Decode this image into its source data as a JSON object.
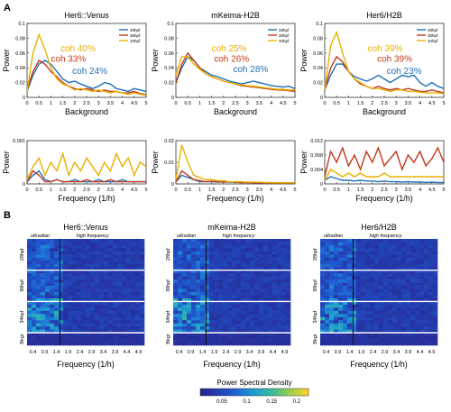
{
  "panel_labels": {
    "a": "A",
    "b": "B"
  },
  "colors": {
    "blue": "#1f6fb4",
    "red": "#c0391b",
    "yellow": "#e8b100"
  },
  "chart_data": [
    {
      "type": "line",
      "title": "Her6::Venus",
      "xlabel": "Background",
      "ylabel": "Power",
      "xticks": [
        "0",
        "0.5",
        "1",
        "1.5",
        "2",
        "2.5",
        "3",
        "3.5",
        "4",
        "4.5",
        "5"
      ],
      "xlim": [
        0,
        5
      ],
      "ylim": [
        0,
        0.1
      ],
      "yticks": [
        "0",
        "0.02",
        "0.04",
        "0.06",
        "0.08",
        "0.1"
      ],
      "legend": [
        "28hpf",
        "30hpf",
        "34hpf"
      ],
      "annotations": [
        "coh 40%",
        "coh 33%",
        "coh 24%"
      ],
      "x": [
        0,
        0.25,
        0.5,
        0.75,
        1,
        1.25,
        1.5,
        1.75,
        2,
        2.25,
        2.5,
        2.75,
        3,
        3.25,
        3.5,
        3.75,
        4,
        4.25,
        4.5,
        4.75,
        5
      ],
      "series": [
        {
          "name": "28hpf",
          "values": [
            0.008,
            0.03,
            0.045,
            0.05,
            0.045,
            0.035,
            0.025,
            0.02,
            0.022,
            0.018,
            0.015,
            0.012,
            0.015,
            0.02,
            0.018,
            0.012,
            0.01,
            0.008,
            0.012,
            0.01,
            0.008
          ]
        },
        {
          "name": "30hpf",
          "values": [
            0.01,
            0.035,
            0.05,
            0.045,
            0.035,
            0.028,
            0.02,
            0.015,
            0.012,
            0.01,
            0.012,
            0.01,
            0.008,
            0.01,
            0.008,
            0.008,
            0.006,
            0.006,
            0.008,
            0.005,
            0.004
          ]
        },
        {
          "name": "34hpf",
          "values": [
            0.008,
            0.06,
            0.085,
            0.065,
            0.04,
            0.025,
            0.018,
            0.015,
            0.01,
            0.012,
            0.01,
            0.008,
            0.01,
            0.008,
            0.006,
            0.008,
            0.006,
            0.004,
            0.006,
            0.004,
            0.003
          ]
        }
      ]
    },
    {
      "type": "line",
      "title": "mKeima-H2B",
      "xlabel": "Background",
      "ylabel": "Power",
      "xticks": [
        "0",
        "0.5",
        "1",
        "1.5",
        "2",
        "2.5",
        "3",
        "3.5",
        "4",
        "4.5",
        "5"
      ],
      "xlim": [
        0,
        5
      ],
      "ylim": [
        0,
        0.1
      ],
      "yticks": [
        "0",
        "0.02",
        "0.04",
        "0.06",
        "0.08",
        "0.1"
      ],
      "legend": [
        "28hpf",
        "30hpf",
        "34hpf"
      ],
      "annotations": [
        "coh 25%",
        "coh 26%",
        "coh 28%"
      ],
      "x": [
        0,
        0.25,
        0.5,
        0.75,
        1,
        1.25,
        1.5,
        1.75,
        2,
        2.25,
        2.5,
        2.75,
        3,
        3.25,
        3.5,
        3.75,
        4,
        4.25,
        4.5,
        4.75,
        5
      ],
      "series": [
        {
          "name": "28hpf",
          "values": [
            0.02,
            0.04,
            0.055,
            0.05,
            0.04,
            0.035,
            0.03,
            0.028,
            0.025,
            0.022,
            0.02,
            0.018,
            0.02,
            0.022,
            0.02,
            0.018,
            0.016,
            0.015,
            0.014,
            0.015,
            0.012
          ]
        },
        {
          "name": "30hpf",
          "values": [
            0.02,
            0.045,
            0.06,
            0.05,
            0.04,
            0.032,
            0.028,
            0.025,
            0.022,
            0.02,
            0.018,
            0.016,
            0.015,
            0.014,
            0.013,
            0.012,
            0.011,
            0.01,
            0.01,
            0.009,
            0.008
          ]
        },
        {
          "name": "34hpf",
          "values": [
            0.03,
            0.055,
            0.055,
            0.045,
            0.038,
            0.032,
            0.028,
            0.025,
            0.022,
            0.02,
            0.018,
            0.017,
            0.016,
            0.015,
            0.014,
            0.013,
            0.012,
            0.011,
            0.011,
            0.01,
            0.01
          ]
        }
      ]
    },
    {
      "type": "line",
      "title": "Her6/H2B",
      "xlabel": "Background",
      "ylabel": "Power",
      "xticks": [
        "0",
        "0.5",
        "1",
        "1.5",
        "2",
        "2.5",
        "3",
        "3.5",
        "4",
        "4.5",
        "5"
      ],
      "xlim": [
        0,
        5
      ],
      "ylim": [
        0,
        0.1
      ],
      "yticks": [
        "0",
        "0.02",
        "0.04",
        "0.06",
        "0.08",
        "0.1"
      ],
      "legend": [
        "28hpf",
        "30hpf",
        "34hpf"
      ],
      "annotations": [
        "coh 39%",
        "coh 39%",
        "coh 23%"
      ],
      "x": [
        0,
        0.25,
        0.5,
        0.75,
        1,
        1.25,
        1.5,
        1.75,
        2,
        2.25,
        2.5,
        2.75,
        3,
        3.25,
        3.5,
        3.75,
        4,
        4.25,
        4.5,
        4.75,
        5
      ],
      "series": [
        {
          "name": "28hpf",
          "values": [
            0.01,
            0.03,
            0.045,
            0.045,
            0.035,
            0.028,
            0.025,
            0.022,
            0.025,
            0.03,
            0.025,
            0.02,
            0.025,
            0.03,
            0.028,
            0.03,
            0.02,
            0.015,
            0.02,
            0.015,
            0.012
          ]
        },
        {
          "name": "30hpf",
          "values": [
            0.01,
            0.04,
            0.055,
            0.048,
            0.035,
            0.025,
            0.018,
            0.015,
            0.012,
            0.015,
            0.012,
            0.01,
            0.012,
            0.01,
            0.012,
            0.01,
            0.008,
            0.008,
            0.01,
            0.008,
            0.006
          ]
        },
        {
          "name": "34hpf",
          "values": [
            0.01,
            0.07,
            0.088,
            0.06,
            0.035,
            0.025,
            0.02,
            0.015,
            0.012,
            0.012,
            0.01,
            0.008,
            0.01,
            0.01,
            0.008,
            0.008,
            0.007,
            0.006,
            0.006,
            0.006,
            0.005
          ]
        }
      ]
    },
    {
      "type": "line",
      "title": "",
      "xlabel": "Frequency (1/h)",
      "ylabel": "Power",
      "xticks": [
        "0",
        "0.5",
        "1",
        "1.5",
        "2",
        "2.5",
        "3",
        "3.5",
        "4",
        "4.5",
        "5"
      ],
      "xlim": [
        0,
        5
      ],
      "ylim": [
        0,
        0.001
      ],
      "yticks": [
        "0",
        "0.001"
      ],
      "x": [
        0,
        0.25,
        0.5,
        0.75,
        1,
        1.25,
        1.5,
        1.75,
        2,
        2.25,
        2.5,
        2.75,
        3,
        3.25,
        3.5,
        3.75,
        4,
        4.25,
        4.5,
        4.75,
        5
      ],
      "series": [
        {
          "name": "28hpf",
          "values": [
            5e-05,
            0.0002,
            0.0003,
            0.0001,
            5e-05,
            0.0001,
            5e-05,
            5e-05,
            0.0001,
            5e-05,
            5e-05,
            5e-05,
            0.0001,
            5e-05,
            5e-05,
            5e-05,
            0.0001,
            5e-05,
            5e-05,
            5e-05,
            5e-05
          ]
        },
        {
          "name": "30hpf",
          "values": [
            5e-05,
            0.0003,
            0.0002,
            5e-05,
            5e-05,
            0.0001,
            5e-05,
            5e-05,
            5e-05,
            5e-05,
            0.0001,
            5e-05,
            5e-05,
            5e-05,
            0.0001,
            5e-05,
            5e-05,
            5e-05,
            5e-05,
            5e-05,
            5e-05
          ]
        },
        {
          "name": "34hpf",
          "values": [
            0.0001,
            0.0004,
            0.0006,
            0.0002,
            0.0005,
            0.0003,
            0.0007,
            0.0002,
            0.0005,
            0.0003,
            0.0006,
            0.0004,
            0.0002,
            0.0005,
            0.0003,
            0.0007,
            0.0004,
            0.0006,
            0.0002,
            0.0005,
            0.0004
          ]
        }
      ]
    },
    {
      "type": "line",
      "title": "",
      "xlabel": "Frequency (1/h)",
      "ylabel": "Power",
      "xticks": [
        "0",
        "0.5",
        "1",
        "1.5",
        "2",
        "2.5",
        "3",
        "3.5",
        "4",
        "4.5",
        "5"
      ],
      "xlim": [
        0,
        5
      ],
      "ylim": [
        0,
        0.02
      ],
      "yticks": [
        "0",
        "0.01",
        "0.02"
      ],
      "x": [
        0,
        0.25,
        0.5,
        0.75,
        1,
        1.25,
        1.5,
        1.75,
        2,
        2.25,
        2.5,
        2.75,
        3,
        3.25,
        3.5,
        3.75,
        4,
        4.25,
        4.5,
        4.75,
        5
      ],
      "series": [
        {
          "name": "28hpf",
          "values": [
            0.001,
            0.004,
            0.003,
            0.002,
            0.001,
            0.001,
            0.001,
            0.0008,
            0.001,
            0.0008,
            0.0008,
            0.0006,
            0.0008,
            0.0006,
            0.0008,
            0.0006,
            0.0006,
            0.0005,
            0.0006,
            0.0005,
            0.0005
          ]
        },
        {
          "name": "30hpf",
          "values": [
            0.001,
            0.006,
            0.004,
            0.002,
            0.0015,
            0.001,
            0.0012,
            0.001,
            0.0008,
            0.001,
            0.0008,
            0.0006,
            0.0006,
            0.0005,
            0.0005,
            0.0005,
            0.0004,
            0.0004,
            0.0004,
            0.0004,
            0.0004
          ]
        },
        {
          "name": "34hpf",
          "values": [
            0.002,
            0.018,
            0.01,
            0.004,
            0.003,
            0.002,
            0.002,
            0.0015,
            0.0015,
            0.001,
            0.001,
            0.001,
            0.0008,
            0.0008,
            0.0008,
            0.0006,
            0.0006,
            0.0005,
            0.0005,
            0.0005,
            0.0005
          ]
        }
      ]
    },
    {
      "type": "line",
      "title": "",
      "xlabel": "Frequency (1/h)",
      "ylabel": "Power",
      "xticks": [
        "0",
        "0.5",
        "1",
        "1.5",
        "2",
        "2.5",
        "3",
        "3.5",
        "4",
        "4.5",
        "5"
      ],
      "xlim": [
        0,
        5
      ],
      "ylim": [
        0,
        0.012
      ],
      "yticks": [
        "0",
        "0.004",
        "0.008",
        "0.012"
      ],
      "x": [
        0,
        0.25,
        0.5,
        0.75,
        1,
        1.25,
        1.5,
        1.75,
        2,
        2.25,
        2.5,
        2.75,
        3,
        3.25,
        3.5,
        3.75,
        4,
        4.25,
        4.5,
        4.75,
        5
      ],
      "series": [
        {
          "name": "28hpf",
          "values": [
            0.001,
            0.002,
            0.0015,
            0.001,
            0.001,
            0.0008,
            0.001,
            0.0008,
            0.0008,
            0.0006,
            0.0008,
            0.0006,
            0.0006,
            0.0005,
            0.0006,
            0.0005,
            0.0005,
            0.0004,
            0.0005,
            0.0004,
            0.0004
          ]
        },
        {
          "name": "30hpf",
          "values": [
            0.002,
            0.009,
            0.006,
            0.01,
            0.005,
            0.008,
            0.004,
            0.009,
            0.006,
            0.01,
            0.005,
            0.007,
            0.009,
            0.004,
            0.008,
            0.006,
            0.009,
            0.005,
            0.007,
            0.01,
            0.006
          ]
        },
        {
          "name": "34hpf",
          "values": [
            0.001,
            0.004,
            0.003,
            0.002,
            0.003,
            0.002,
            0.003,
            0.002,
            0.002,
            0.002,
            0.003,
            0.002,
            0.002,
            0.002,
            0.002,
            0.002,
            0.002,
            0.002,
            0.002,
            0.002,
            0.002
          ]
        }
      ]
    },
    {
      "type": "heatmap",
      "title": "Her6::Venus",
      "xlabel": "Frequency (1/h)",
      "xticks": [
        "0.4",
        "0.9",
        "1.4",
        "1.9",
        "2.4",
        "2.9",
        "3.4",
        "3.9",
        "4.4",
        "4.9"
      ],
      "row_groups": [
        "28hpf",
        "30hpf",
        "34hpf",
        "Bkgr"
      ],
      "band_labels": [
        "ultradian",
        "high frequency"
      ],
      "colorbar_label": "Power Spectral Density",
      "colorbar_ticks": [
        "0.05",
        "0.1",
        "0.15",
        "0.2"
      ]
    },
    {
      "type": "heatmap",
      "title": "mKeima-H2B",
      "xlabel": "Frequency (1/h)",
      "xticks": [
        "0.4",
        "0.9",
        "1.4",
        "1.9",
        "2.4",
        "2.9",
        "3.4",
        "3.9",
        "4.4",
        "4.9"
      ],
      "row_groups": [
        "28hpf",
        "30hpf",
        "34hpf",
        "Bkgr"
      ],
      "band_labels": [
        "ultradian",
        "high frequency"
      ]
    },
    {
      "type": "heatmap",
      "title": "Her6/H2B",
      "xlabel": "Frequency (1/h)",
      "xticks": [
        "0.4",
        "0.9",
        "1.4",
        "1.9",
        "2.4",
        "2.9",
        "3.4",
        "3.9",
        "4.4",
        "4.9"
      ],
      "row_groups": [
        "28hpf",
        "30hpf",
        "34hpf",
        "Bkgr"
      ],
      "band_labels": [
        "ultradian",
        "high frequency"
      ]
    }
  ]
}
